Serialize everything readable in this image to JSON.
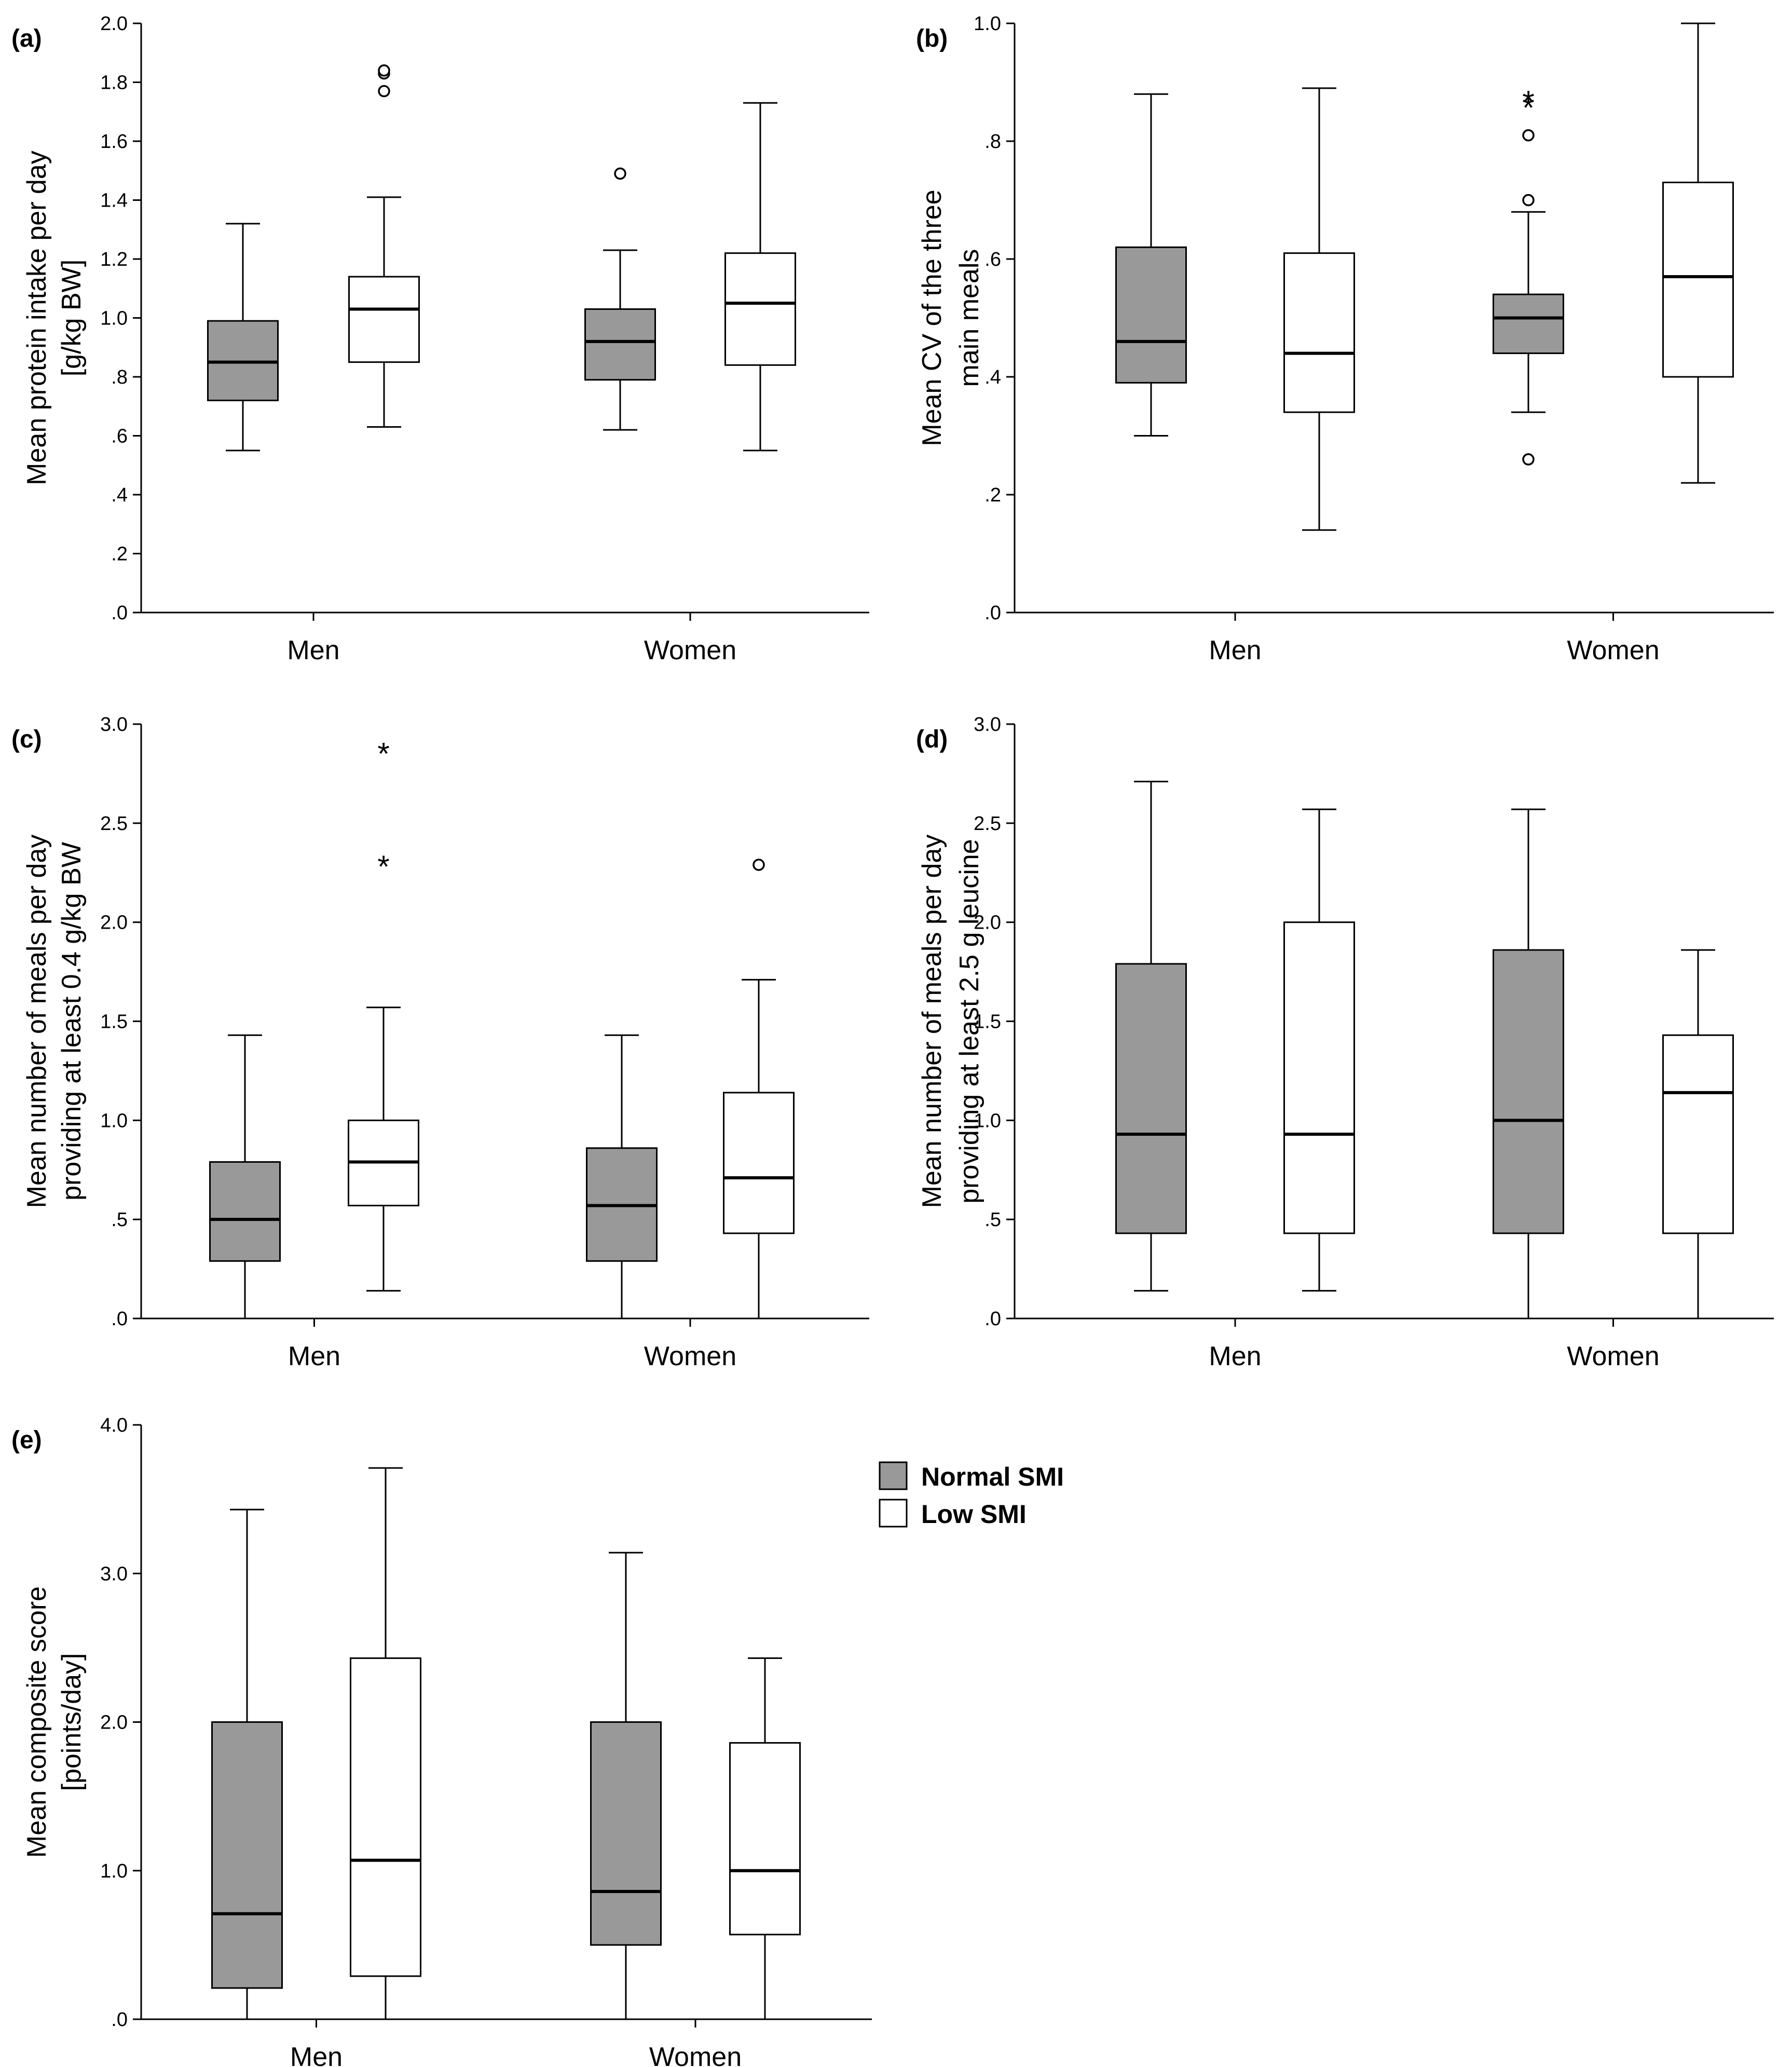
{
  "figure": {
    "legend": {
      "items": [
        {
          "label": "Normal SMI",
          "fill": "#999999"
        },
        {
          "label": "Low SMI",
          "fill": "#ffffff"
        }
      ]
    }
  },
  "chart_data": [
    {
      "panel": "(a)",
      "type": "box",
      "ylabel_lines": [
        "Mean protein intake per day",
        "[g/kg BW]"
      ],
      "ylim": [
        0,
        2.0
      ],
      "yticks": [
        {
          "v": 0.0,
          "label": ".0"
        },
        {
          "v": 0.2,
          "label": ".2"
        },
        {
          "v": 0.4,
          "label": ".4"
        },
        {
          "v": 0.6,
          "label": ".6"
        },
        {
          "v": 0.8,
          "label": ".8"
        },
        {
          "v": 1.0,
          "label": "1.0"
        },
        {
          "v": 1.2,
          "label": "1.2"
        },
        {
          "v": 1.4,
          "label": "1.4"
        },
        {
          "v": 1.6,
          "label": "1.6"
        },
        {
          "v": 1.8,
          "label": "1.8"
        },
        {
          "v": 2.0,
          "label": "2.0"
        }
      ],
      "categories": [
        "Men",
        "Women"
      ],
      "series": [
        {
          "name": "Normal SMI",
          "boxes": [
            {
              "min": 0.55,
              "q1": 0.72,
              "median": 0.85,
              "q3": 0.99,
              "max": 1.32,
              "outliers": []
            },
            {
              "min": 0.62,
              "q1": 0.79,
              "median": 0.92,
              "q3": 1.03,
              "max": 1.23,
              "outliers": [
                {
                  "v": 1.49,
                  "m": "o"
                }
              ]
            }
          ]
        },
        {
          "name": "Low SMI",
          "boxes": [
            {
              "min": 0.63,
              "q1": 0.85,
              "median": 1.03,
              "q3": 1.14,
              "max": 1.41,
              "outliers": [
                {
                  "v": 1.77,
                  "m": "o"
                },
                {
                  "v": 1.83,
                  "m": "o"
                },
                {
                  "v": 1.84,
                  "m": "o"
                }
              ]
            },
            {
              "min": 0.55,
              "q1": 0.84,
              "median": 1.05,
              "q3": 1.22,
              "max": 1.73,
              "outliers": []
            }
          ]
        }
      ]
    },
    {
      "panel": "(b)",
      "type": "box",
      "ylabel_lines": [
        "Mean CV of the three",
        "main meals"
      ],
      "ylim": [
        0,
        1.0
      ],
      "yticks": [
        {
          "v": 0.0,
          "label": ".0"
        },
        {
          "v": 0.2,
          "label": ".2"
        },
        {
          "v": 0.4,
          "label": ".4"
        },
        {
          "v": 0.6,
          "label": ".6"
        },
        {
          "v": 0.8,
          "label": ".8"
        },
        {
          "v": 1.0,
          "label": "1.0"
        }
      ],
      "categories": [
        "Men",
        "Women"
      ],
      "series": [
        {
          "name": "Normal SMI",
          "boxes": [
            {
              "min": 0.3,
              "q1": 0.39,
              "median": 0.46,
              "q3": 0.62,
              "max": 0.88,
              "outliers": []
            },
            {
              "min": 0.34,
              "q1": 0.44,
              "median": 0.5,
              "q3": 0.54,
              "max": 0.68,
              "outliers": [
                {
                  "v": 0.26,
                  "m": "o"
                },
                {
                  "v": 0.7,
                  "m": "o"
                },
                {
                  "v": 0.81,
                  "m": "o"
                },
                {
                  "v": 0.86,
                  "m": "*"
                },
                {
                  "v": 0.87,
                  "m": "*"
                }
              ]
            }
          ]
        },
        {
          "name": "Low SMI",
          "boxes": [
            {
              "min": 0.14,
              "q1": 0.34,
              "median": 0.44,
              "q3": 0.61,
              "max": 0.89,
              "outliers": []
            },
            {
              "min": 0.22,
              "q1": 0.4,
              "median": 0.57,
              "q3": 0.73,
              "max": 1.0,
              "outliers": []
            }
          ]
        }
      ]
    },
    {
      "panel": "(c)",
      "type": "box",
      "ylabel_lines": [
        "Mean number of meals per day",
        "providing at least 0.4 g/kg BW"
      ],
      "ylim": [
        0,
        3.0
      ],
      "yticks": [
        {
          "v": 0.0,
          "label": ".0"
        },
        {
          "v": 0.5,
          "label": ".5"
        },
        {
          "v": 1.0,
          "label": "1.0"
        },
        {
          "v": 1.5,
          "label": "1.5"
        },
        {
          "v": 2.0,
          "label": "2.0"
        },
        {
          "v": 2.5,
          "label": "2.5"
        },
        {
          "v": 3.0,
          "label": "3.0"
        }
      ],
      "categories": [
        "Men",
        "Women"
      ],
      "series": [
        {
          "name": "Normal SMI",
          "boxes": [
            {
              "min": 0.0,
              "q1": 0.29,
              "median": 0.5,
              "q3": 0.79,
              "max": 1.43,
              "outliers": []
            },
            {
              "min": 0.0,
              "q1": 0.29,
              "median": 0.57,
              "q3": 0.86,
              "max": 1.43,
              "outliers": []
            }
          ]
        },
        {
          "name": "Low SMI",
          "boxes": [
            {
              "min": 0.14,
              "q1": 0.57,
              "median": 0.79,
              "q3": 1.0,
              "max": 1.57,
              "outliers": [
                {
                  "v": 2.29,
                  "m": "*"
                },
                {
                  "v": 2.86,
                  "m": "*"
                }
              ]
            },
            {
              "min": 0.0,
              "q1": 0.43,
              "median": 0.71,
              "q3": 1.14,
              "max": 1.71,
              "outliers": [
                {
                  "v": 2.29,
                  "m": "o"
                }
              ]
            }
          ]
        }
      ]
    },
    {
      "panel": "(d)",
      "type": "box",
      "ylabel_lines": [
        "Mean number of meals per day",
        "providing at least 2.5 g leucine"
      ],
      "ylim": [
        0,
        3.0
      ],
      "yticks": [
        {
          "v": 0.0,
          "label": ".0"
        },
        {
          "v": 0.5,
          "label": ".5"
        },
        {
          "v": 1.0,
          "label": "1.0"
        },
        {
          "v": 1.5,
          "label": "1.5"
        },
        {
          "v": 2.0,
          "label": "2.0"
        },
        {
          "v": 2.5,
          "label": "2.5"
        },
        {
          "v": 3.0,
          "label": "3.0"
        }
      ],
      "categories": [
        "Men",
        "Women"
      ],
      "series": [
        {
          "name": "Normal SMI",
          "boxes": [
            {
              "min": 0.14,
              "q1": 0.43,
              "median": 0.93,
              "q3": 1.79,
              "max": 2.71,
              "outliers": []
            },
            {
              "min": 0.0,
              "q1": 0.43,
              "median": 1.0,
              "q3": 1.86,
              "max": 2.57,
              "outliers": []
            }
          ]
        },
        {
          "name": "Low SMI",
          "boxes": [
            {
              "min": 0.14,
              "q1": 0.43,
              "median": 0.93,
              "q3": 2.0,
              "max": 2.57,
              "outliers": []
            },
            {
              "min": 0.0,
              "q1": 0.43,
              "median": 1.14,
              "q3": 1.43,
              "max": 1.86,
              "outliers": []
            }
          ]
        }
      ]
    },
    {
      "panel": "(e)",
      "type": "box",
      "ylabel_lines": [
        "Mean composite score",
        "[points/day]"
      ],
      "ylim": [
        0,
        4.0
      ],
      "yticks": [
        {
          "v": 0.0,
          "label": ".0"
        },
        {
          "v": 1.0,
          "label": "1.0"
        },
        {
          "v": 2.0,
          "label": "2.0"
        },
        {
          "v": 3.0,
          "label": "3.0"
        },
        {
          "v": 4.0,
          "label": "4.0"
        }
      ],
      "categories": [
        "Men",
        "Women"
      ],
      "series": [
        {
          "name": "Normal SMI",
          "boxes": [
            {
              "min": 0.0,
              "q1": 0.21,
              "median": 0.71,
              "q3": 2.0,
              "max": 3.43,
              "outliers": []
            },
            {
              "min": 0.0,
              "q1": 0.5,
              "median": 0.86,
              "q3": 2.0,
              "max": 3.14,
              "outliers": []
            }
          ]
        },
        {
          "name": "Low SMI",
          "boxes": [
            {
              "min": 0.0,
              "q1": 0.29,
              "median": 1.07,
              "q3": 2.43,
              "max": 3.71,
              "outliers": []
            },
            {
              "min": 0.0,
              "q1": 0.57,
              "median": 1.0,
              "q3": 1.86,
              "max": 2.43,
              "outliers": []
            }
          ]
        }
      ]
    }
  ]
}
